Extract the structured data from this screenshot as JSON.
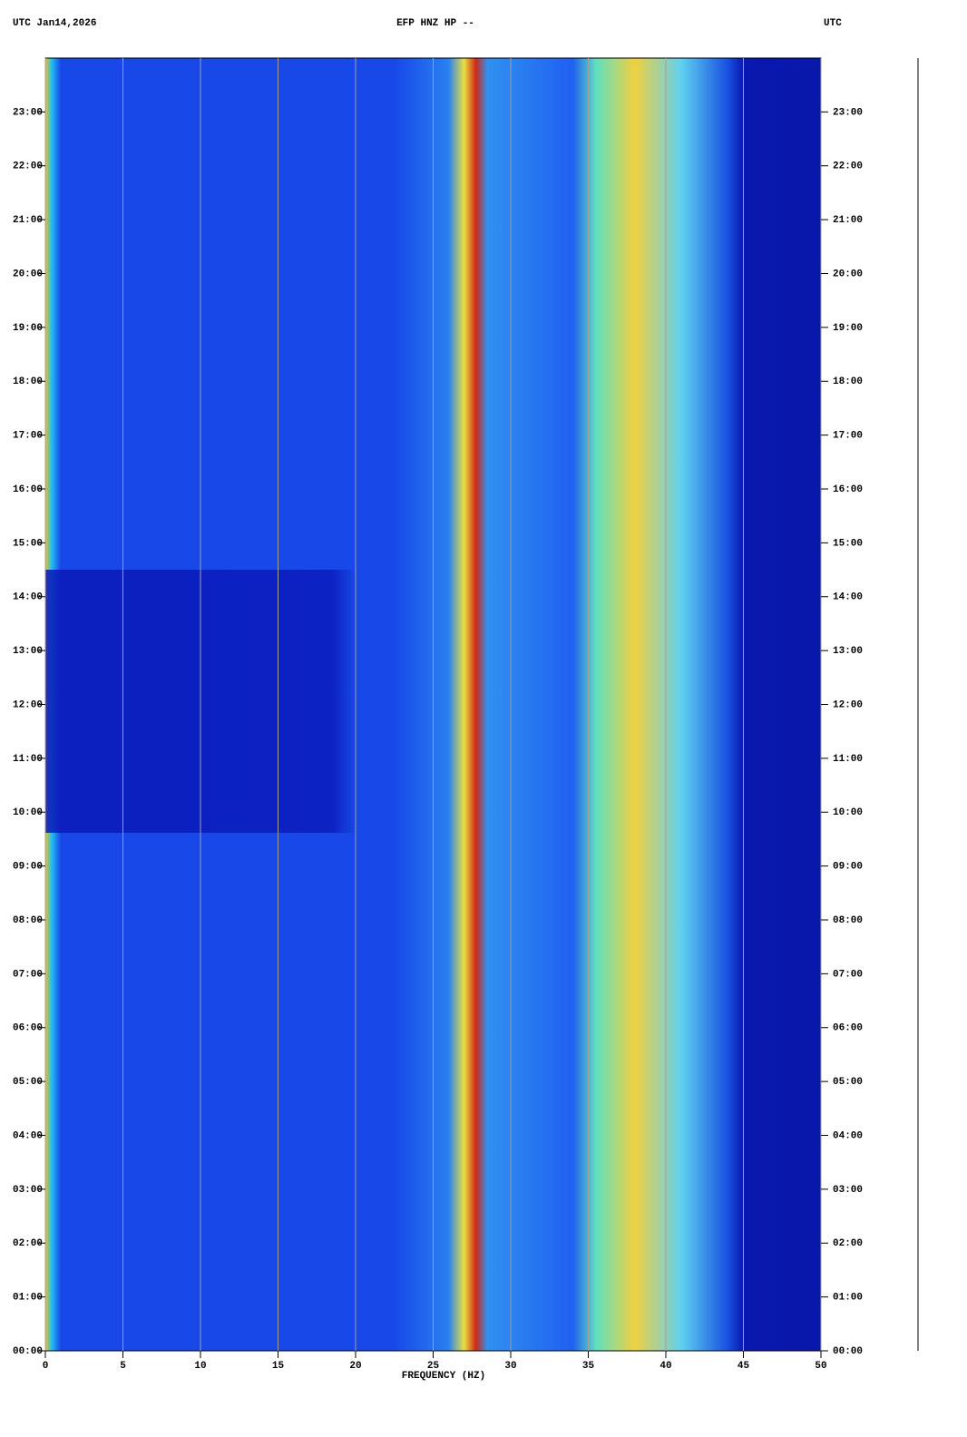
{
  "chart_data": {
    "type": "spectrogram",
    "title_left": "UTC  Jan14,2026",
    "title": "EFP HNZ HP --",
    "title_right": "UTC",
    "xlabel": "FREQUENCY (HZ)",
    "xlim": [
      0,
      50
    ],
    "xticks": [
      0,
      5,
      10,
      15,
      20,
      25,
      30,
      35,
      40,
      45,
      50
    ],
    "ylim": [
      0,
      24
    ],
    "yticks": [
      {
        "value": 0,
        "label": "00:00"
      },
      {
        "value": 1,
        "label": "01:00"
      },
      {
        "value": 2,
        "label": "02:00"
      },
      {
        "value": 3,
        "label": "03:00"
      },
      {
        "value": 4,
        "label": "04:00"
      },
      {
        "value": 5,
        "label": "05:00"
      },
      {
        "value": 6,
        "label": "06:00"
      },
      {
        "value": 7,
        "label": "07:00"
      },
      {
        "value": 8,
        "label": "08:00"
      },
      {
        "value": 9,
        "label": "09:00"
      },
      {
        "value": 10,
        "label": "10:00"
      },
      {
        "value": 11,
        "label": "11:00"
      },
      {
        "value": 12,
        "label": "12:00"
      },
      {
        "value": 13,
        "label": "13:00"
      },
      {
        "value": 14,
        "label": "14:00"
      },
      {
        "value": 15,
        "label": "15:00"
      },
      {
        "value": 16,
        "label": "16:00"
      },
      {
        "value": 17,
        "label": "17:00"
      },
      {
        "value": 18,
        "label": "18:00"
      },
      {
        "value": 19,
        "label": "19:00"
      },
      {
        "value": 20,
        "label": "20:00"
      },
      {
        "value": 21,
        "label": "21:00"
      },
      {
        "value": 22,
        "label": "22:00"
      },
      {
        "value": 23,
        "label": "23:00"
      }
    ],
    "grid": true,
    "grid_color": "#a0a0a0"
  }
}
